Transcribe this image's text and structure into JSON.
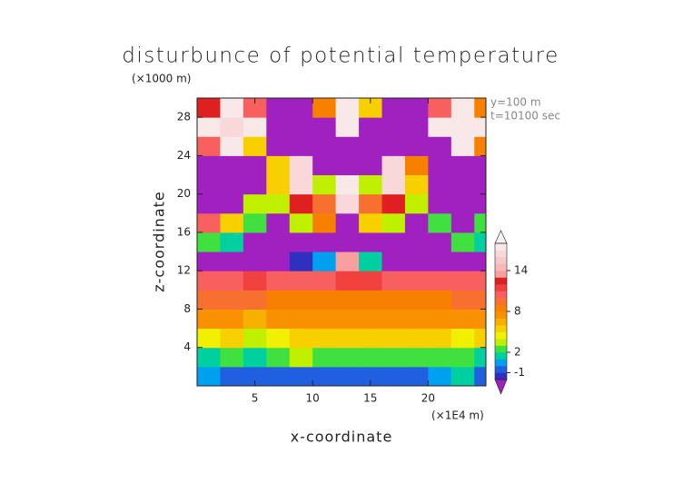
{
  "chart_data": {
    "type": "contour",
    "title": "disturbunce of potential temperature",
    "y_unit_label": "(×1000 m)",
    "x_unit_label": "(×1E4 m)",
    "annotations": [
      "y=100 m",
      "t=10100 sec"
    ],
    "xlabel": "x-coordinate",
    "ylabel": "z-coordinate",
    "xlim": [
      0,
      25
    ],
    "ylim": [
      0,
      30
    ],
    "xticks": [
      5,
      10,
      15,
      20
    ],
    "yticks": [
      4,
      8,
      12,
      16,
      20,
      24,
      28
    ],
    "x": [
      1,
      3,
      5,
      7,
      9,
      11,
      13,
      15,
      17,
      19,
      21,
      23,
      25
    ],
    "y": [
      1,
      3,
      5,
      7,
      9,
      11,
      13,
      15,
      17,
      19,
      21,
      23,
      25,
      27,
      29
    ],
    "values": [
      [
        0,
        -1,
        -1,
        -1,
        -1,
        -1,
        -1,
        -1,
        -1,
        -1,
        0,
        1,
        -1
      ],
      [
        1,
        2,
        1,
        2,
        3,
        2,
        2,
        2,
        2,
        2,
        2,
        2,
        1
      ],
      [
        4,
        5,
        3,
        4,
        5,
        5,
        5,
        5,
        5,
        5,
        5,
        4,
        5
      ],
      [
        7,
        7,
        6,
        7,
        7,
        7,
        7,
        7,
        7,
        7,
        7,
        7,
        7
      ],
      [
        9,
        9,
        9,
        8,
        8,
        8,
        8,
        8,
        8,
        8,
        8,
        9,
        9
      ],
      [
        10,
        10,
        11,
        10,
        10,
        10,
        11,
        11,
        10,
        10,
        10,
        10,
        10
      ],
      [
        -3,
        -3,
        -3,
        -3,
        -2,
        0,
        13,
        1,
        -3,
        -3,
        -3,
        -3,
        -3
      ],
      [
        2,
        1,
        -3,
        -3,
        -3,
        -3,
        -3,
        -3,
        -3,
        -3,
        -3,
        2,
        1
      ],
      [
        10,
        5,
        2,
        -3,
        3,
        8,
        -3,
        5,
        3,
        -3,
        2,
        -3,
        2
      ],
      [
        -3,
        -3,
        3,
        3,
        12,
        9,
        16,
        9,
        12,
        3,
        -3,
        -3,
        -3
      ],
      [
        -3,
        -3,
        -3,
        5,
        16,
        3,
        17,
        3,
        16,
        5,
        -3,
        -3,
        -3
      ],
      [
        -3,
        -3,
        -3,
        5,
        16,
        -3,
        -3,
        -3,
        16,
        8,
        -3,
        -3,
        -3
      ],
      [
        10,
        17,
        5,
        -3,
        -3,
        -3,
        -3,
        -3,
        -3,
        -3,
        -3,
        17,
        8
      ],
      [
        17,
        16,
        17,
        -3,
        -3,
        -3,
        17,
        -3,
        -3,
        -3,
        17,
        17,
        17
      ],
      [
        12,
        17,
        10,
        -3,
        -3,
        8,
        17,
        5,
        -3,
        -3,
        10,
        17,
        8
      ]
    ],
    "levels": [
      -2,
      -1,
      0,
      1,
      2,
      3,
      4,
      5,
      6,
      7,
      8,
      9,
      10,
      11,
      12,
      13,
      14,
      15,
      16,
      17,
      18
    ],
    "colors": [
      "#3030c0",
      "#2060e0",
      "#00a0f0",
      "#00d0a0",
      "#40e040",
      "#c0f000",
      "#f0f000",
      "#f8d000",
      "#f8b000",
      "#f89000",
      "#f88000",
      "#f87030",
      "#f86060",
      "#f04040",
      "#e02020",
      "#f8a0a0",
      "#f8b8b8",
      "#f8c8c8",
      "#f8d8d8",
      "#f8e8e8"
    ],
    "under_color": "#a020c0",
    "over_color": "#f8f0f0",
    "colorbar_ticks": [
      -1,
      2,
      8,
      14
    ]
  }
}
